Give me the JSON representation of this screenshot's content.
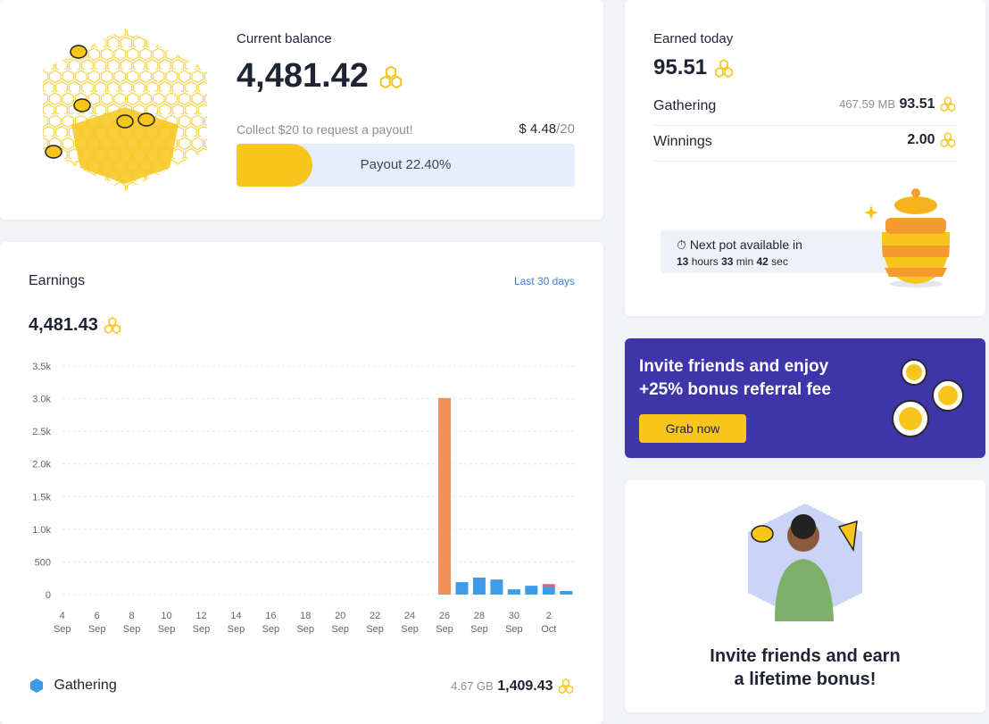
{
  "balance": {
    "title": "Current balance",
    "amount": "4,481.42",
    "note": "Collect $20 to request a payout!",
    "current": "$ 4.48",
    "target": "/20",
    "progress": {
      "value": 22.4,
      "label": "Payout 22.40%"
    }
  },
  "today": {
    "title": "Earned today",
    "amount": "95.51",
    "rows": [
      {
        "name": "Gathering",
        "data": "467.59 MB",
        "amount": "93.51"
      },
      {
        "name": "Winnings",
        "amount": "2.00"
      }
    ],
    "timer": {
      "title": "Next pot available in",
      "hours": "13",
      "hours_unit": "hours",
      "min": "33",
      "min_unit": "min",
      "sec": "42",
      "sec_unit": "sec"
    }
  },
  "banner": {
    "line1": "Invite friends and enjoy",
    "line2": "+25% bonus referral fee",
    "button": "Grab now"
  },
  "invite": {
    "line1": "Invite friends and earn",
    "line2": "a lifetime bonus!"
  },
  "earnings": {
    "title": "Earnings",
    "period": "Last 30 days",
    "total": "4,481.43",
    "breakdown": [
      {
        "name": "Gathering",
        "data": "4.67 GB",
        "amount": "1,409.43"
      }
    ]
  },
  "chart_data": {
    "type": "stacked_bar",
    "categories": [
      "4 Sep",
      null,
      "6 Sep",
      null,
      "8 Sep",
      null,
      "10 Sep",
      null,
      "12 Sep",
      null,
      "14 Sep",
      null,
      "16 Sep",
      null,
      "18 Sep",
      null,
      "20 Sep",
      null,
      "22 Sep",
      null,
      "24 Sep",
      null,
      "26 Sep",
      null,
      "28 Sep",
      null,
      "30 Sep",
      null,
      "2 Oct",
      null
    ],
    "series": [
      {
        "color": "#3d9be9",
        "values": [
          0,
          0,
          0,
          0,
          0,
          0,
          0,
          0,
          0,
          0,
          0,
          0,
          0,
          0,
          0,
          0,
          0,
          0,
          0,
          0,
          0,
          0,
          10,
          190,
          260,
          230,
          80,
          135,
          110,
          55
        ]
      },
      {
        "color": "#f0905a",
        "values": [
          0,
          0,
          0,
          0,
          0,
          0,
          0,
          0,
          0,
          0,
          0,
          0,
          0,
          0,
          0,
          0,
          0,
          0,
          0,
          0,
          0,
          0,
          3000,
          0,
          0,
          0,
          0,
          0,
          0,
          0
        ]
      },
      {
        "color": "#d0609a",
        "values": [
          0,
          0,
          0,
          0,
          0,
          0,
          0,
          0,
          0,
          0,
          0,
          0,
          0,
          0,
          0,
          0,
          0,
          0,
          0,
          0,
          0,
          0,
          0,
          0,
          0,
          0,
          0,
          0,
          50,
          0
        ]
      }
    ],
    "ylim": [
      0,
      3500
    ],
    "yticks": [
      0,
      500,
      {
        "value": 1000,
        "label": "1.0k"
      },
      {
        "value": 1500,
        "label": "1.5k"
      },
      {
        "value": 2000,
        "label": "2.0k"
      },
      {
        "value": 2500,
        "label": "2.5k"
      },
      {
        "value": 3000,
        "label": "3.0k"
      },
      {
        "value": 3500,
        "label": "3.5k"
      }
    ],
    "grid": true
  }
}
